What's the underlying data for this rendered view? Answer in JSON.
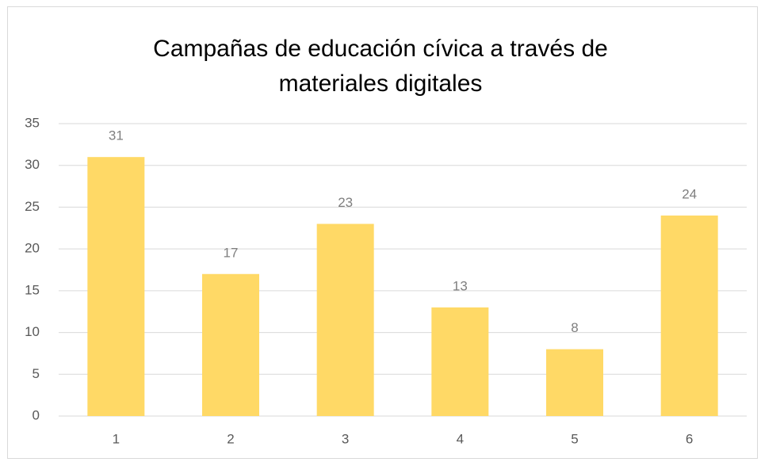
{
  "chart_data": {
    "type": "bar",
    "title": "Campañas de educación cívica a través de materiales digitales",
    "categories": [
      "1",
      "2",
      "3",
      "4",
      "5",
      "6"
    ],
    "values": [
      31,
      17,
      23,
      13,
      8,
      24
    ],
    "color": "#ffd966",
    "ylim": [
      0,
      35
    ],
    "yticks": [
      0,
      5,
      10,
      15,
      20,
      25,
      30,
      35
    ],
    "grid": true
  }
}
